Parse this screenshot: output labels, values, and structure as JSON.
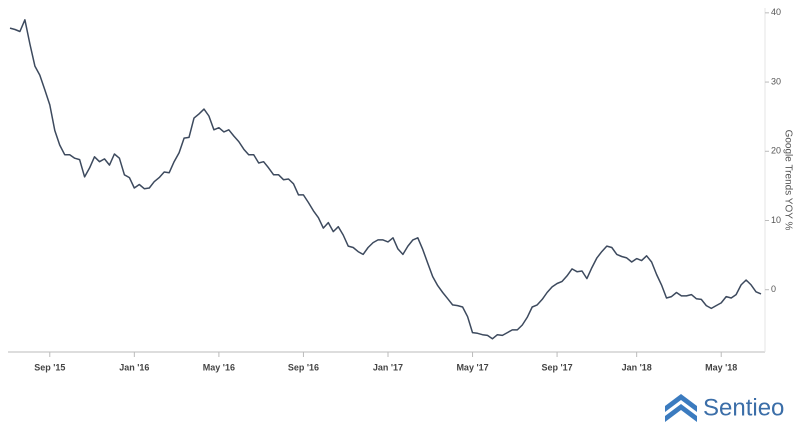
{
  "chart_data": {
    "type": "line",
    "y_label": "Google Trends YOY %",
    "categories": [
      null,
      null,
      null,
      null,
      null,
      null,
      null,
      null,
      "Sep '15",
      null,
      null,
      null,
      null,
      null,
      null,
      null,
      null,
      null,
      null,
      null,
      null,
      null,
      null,
      null,
      null,
      "Jan '16",
      null,
      null,
      null,
      null,
      null,
      null,
      null,
      null,
      null,
      null,
      null,
      null,
      null,
      null,
      null,
      null,
      "May '16",
      null,
      null,
      null,
      null,
      null,
      null,
      null,
      null,
      null,
      null,
      null,
      null,
      null,
      null,
      null,
      null,
      "Sep '16",
      null,
      null,
      null,
      null,
      null,
      null,
      null,
      null,
      null,
      null,
      null,
      null,
      null,
      null,
      null,
      null,
      "Jan '17",
      null,
      null,
      null,
      null,
      null,
      null,
      null,
      null,
      null,
      null,
      null,
      null,
      null,
      null,
      null,
      null,
      "May '17",
      null,
      null,
      null,
      null,
      null,
      null,
      null,
      null,
      null,
      null,
      null,
      null,
      null,
      null,
      null,
      null,
      "Sep '17",
      null,
      null,
      null,
      null,
      null,
      null,
      null,
      null,
      null,
      null,
      null,
      null,
      null,
      null,
      null,
      "Jan '18",
      null,
      null,
      null,
      null,
      null,
      null,
      null,
      null,
      null,
      null,
      null,
      null,
      null,
      null,
      null,
      null,
      "May '18",
      null,
      null,
      null,
      null,
      null,
      null,
      null,
      null
    ],
    "series": [
      {
        "name": "Google Trends YOY %",
        "color": "#3d4a5e",
        "values": [
          37.8,
          37.6,
          37.3,
          39,
          35.5,
          32.3,
          31,
          28.9,
          26.7,
          23,
          20.9,
          19.5,
          19.5,
          19,
          18.8,
          16.3,
          17.6,
          19.2,
          18.5,
          18.9,
          18,
          19.6,
          19,
          16.6,
          16.2,
          14.7,
          15.2,
          14.6,
          14.7,
          15.6,
          16.2,
          17,
          16.9,
          18.5,
          19.8,
          21.9,
          22,
          24.8,
          25.4,
          26.1,
          25.1,
          23.1,
          23.4,
          22.8,
          23.1,
          22.2,
          21.4,
          20.3,
          19.5,
          19.5,
          18.3,
          18.5,
          17.6,
          16.6,
          16.6,
          15.9,
          16,
          15.3,
          13.7,
          13.7,
          12.6,
          11.4,
          10.4,
          8.9,
          9.7,
          8.4,
          9.1,
          7.9,
          6.3,
          6.1,
          5.5,
          5.1,
          6.1,
          6.8,
          7.2,
          7.2,
          6.9,
          7.5,
          5.9,
          5.1,
          6.3,
          7.2,
          7.5,
          5.8,
          3.8,
          1.9,
          0.6,
          -0.4,
          -1.3,
          -2.2,
          -2.3,
          -2.5,
          -3.9,
          -6.2,
          -6.3,
          -6.5,
          -6.6,
          -7.1,
          -6.5,
          -6.6,
          -6.2,
          -5.8,
          -5.8,
          -5.1,
          -4,
          -2.5,
          -2.2,
          -1.4,
          -0.4,
          0.4,
          0.9,
          1.2,
          2,
          3,
          2.6,
          2.7,
          1.6,
          3.2,
          4.6,
          5.5,
          6.3,
          6.1,
          5.1,
          4.8,
          4.6,
          4,
          4.5,
          4.2,
          4.9,
          4,
          2.2,
          0.7,
          -1.2,
          -1,
          -0.4,
          -0.9,
          -0.9,
          -0.7,
          -1.3,
          -1.4,
          -2.3,
          -2.7,
          -2.3,
          -1.9,
          -1,
          -1.2,
          -0.7,
          0.7,
          1.4,
          0.7,
          -0.3,
          -0.6
        ]
      }
    ],
    "ylim": [
      -9,
      40.7
    ],
    "yticks": [
      0,
      10,
      20,
      30,
      40
    ],
    "grid": false
  },
  "logo": "Sentieo"
}
